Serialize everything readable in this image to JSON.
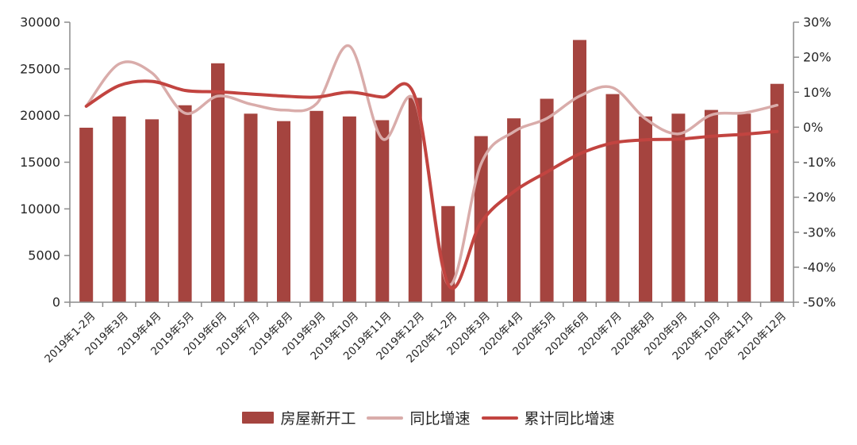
{
  "chart_data": {
    "type": "bar",
    "subtype": "combo-bar-with-smoothed-lines-dual-axis",
    "title": "",
    "xlabel": "",
    "ylabel_left": "",
    "ylabel_right": "",
    "grid": false,
    "legend_position": "bottom",
    "categories": [
      "2019年1-2月",
      "2019年3月",
      "2019年4月",
      "2019年5月",
      "2019年6月",
      "2019年7月",
      "2019年8月",
      "2019年9月",
      "2019年10月",
      "2019年11月",
      "2019年12月",
      "2020年1-2月",
      "2020年3月",
      "2020年4月",
      "2020年5月",
      "2020年6月",
      "2020年7月",
      "2020年8月",
      "2020年9月",
      "2020年10月",
      "2020年11月",
      "2020年12月"
    ],
    "series": [
      {
        "name": "房屋新开工",
        "kind": "bar",
        "y_axis": "left",
        "color": "#A5443F",
        "values": [
          18700,
          19900,
          19600,
          21100,
          25600,
          20200,
          19400,
          20500,
          19900,
          19500,
          21900,
          10300,
          17800,
          19700,
          21800,
          28100,
          22300,
          19900,
          20200,
          20600,
          20200,
          23400
        ]
      },
      {
        "name": "同比增速",
        "kind": "line",
        "y_axis": "right",
        "color": "#D9ACAA",
        "values": [
          6.0,
          18.1,
          15.5,
          4.0,
          8.9,
          6.6,
          4.9,
          6.7,
          23.2,
          -3.3,
          7.4,
          -44.9,
          -10.5,
          -1.3,
          2.5,
          8.9,
          11.3,
          2.4,
          -1.9,
          3.5,
          4.1,
          6.3
        ]
      },
      {
        "name": "累计同比增速",
        "kind": "line",
        "y_axis": "right",
        "color": "#C24440",
        "values": [
          6.0,
          11.9,
          13.1,
          10.5,
          10.1,
          9.5,
          8.9,
          8.6,
          10.0,
          8.6,
          8.5,
          -44.9,
          -27.2,
          -18.4,
          -12.8,
          -7.6,
          -4.5,
          -3.6,
          -3.4,
          -2.6,
          -2.0,
          -1.2
        ]
      }
    ],
    "left_axis": {
      "min": 0,
      "max": 30000,
      "tick_values": [
        0,
        5000,
        10000,
        15000,
        20000,
        25000,
        30000
      ],
      "tick_labels": [
        "0",
        "5000",
        "10000",
        "15000",
        "20000",
        "25000",
        "30000"
      ]
    },
    "right_axis": {
      "min": -50,
      "max": 30,
      "tick_values": [
        -50,
        -40,
        -30,
        -20,
        -10,
        0,
        10,
        20,
        30
      ],
      "tick_labels": [
        "-50%",
        "-40%",
        "-30%",
        "-20%",
        "-10%",
        "0%",
        "10%",
        "20%",
        "30%"
      ]
    }
  }
}
